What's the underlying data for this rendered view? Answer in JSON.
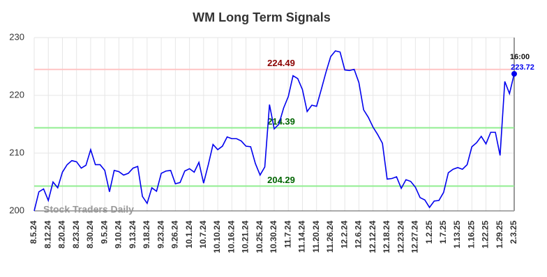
{
  "chart_data": {
    "type": "line",
    "title": "WM Long Term Signals",
    "categories": [
      "8.5.24",
      null,
      null,
      "8.12.24",
      null,
      null,
      "8.20.24",
      null,
      null,
      "8.23.24",
      null,
      null,
      "8.30.24",
      null,
      null,
      "9.5.24",
      null,
      null,
      "9.10.24",
      null,
      null,
      "9.13.24",
      null,
      null,
      "9.18.24",
      null,
      null,
      "9.23.24",
      null,
      null,
      "9.26.24",
      null,
      null,
      "10.1.24",
      null,
      null,
      "10.7.24",
      null,
      null,
      "10.10.24",
      null,
      null,
      "10.16.24",
      null,
      null,
      "10.21.24",
      null,
      null,
      "10.25.24",
      null,
      null,
      "10.30.24",
      null,
      null,
      "11.7.24",
      null,
      null,
      "11.14.24",
      null,
      null,
      "11.20.24",
      null,
      null,
      "11.26.24",
      null,
      null,
      "12.2.24",
      null,
      null,
      "12.6.24",
      null,
      null,
      "12.12.24",
      null,
      null,
      "12.18.24",
      null,
      null,
      "12.23.24",
      null,
      null,
      "12.27.24",
      null,
      null,
      "1.2.25",
      null,
      null,
      "1.7.25",
      null,
      null,
      "1.13.25",
      null,
      null,
      "1.16.25",
      null,
      null,
      "1.22.25",
      null,
      null,
      "1.29.25",
      null,
      null,
      "2.3.25"
    ],
    "values": [
      200,
      203.3,
      203.8,
      201.8,
      205,
      204,
      206.7,
      208,
      208.7,
      208.5,
      207.4,
      207.9,
      210.6,
      208,
      208,
      207,
      203.3,
      207,
      206.8,
      206.2,
      206.5,
      207.4,
      207.7,
      202.5,
      201.3,
      204,
      203.4,
      206.5,
      206.9,
      207,
      204.7,
      204.9,
      206.9,
      207.3,
      206.7,
      208.4,
      204.8,
      208,
      211.5,
      210.6,
      211.2,
      212.8,
      212.5,
      212.5,
      212.1,
      211.2,
      211.1,
      208.2,
      206.2,
      207.6,
      218.4,
      214.2,
      215,
      217.8,
      219.8,
      223.4,
      222.9,
      221,
      217.2,
      218.3,
      218.1,
      221,
      224,
      226.7,
      227.7,
      227.5,
      224.4,
      224.3,
      224.5,
      222.2,
      217.5,
      216.2,
      214.5,
      213.2,
      211.7,
      205.5,
      205.6,
      205.9,
      203.9,
      205.4,
      205.1,
      204.1,
      202.3,
      201.9,
      200.6,
      201.7,
      201.8,
      203.2,
      206.6,
      207.2,
      207.5,
      207.2,
      208,
      211.1,
      211.8,
      212.9,
      211.6,
      213.6,
      213.6,
      209.6,
      222.4,
      220.3,
      223.72
    ],
    "color": "#0000ee",
    "ylim": [
      200,
      230
    ],
    "yticks": [
      200,
      210,
      220,
      230
    ],
    "grid": true,
    "levels": [
      {
        "value": 224.49,
        "color": "#ffc4c4",
        "label_color": "#8b0000"
      },
      {
        "value": 214.39,
        "color": "#90ee90",
        "label_color": "#006400"
      },
      {
        "value": 204.29,
        "color": "#90ee90",
        "label_color": "#006400"
      }
    ],
    "last_time": "16:00",
    "watermark": "Stock Traders Daily"
  }
}
